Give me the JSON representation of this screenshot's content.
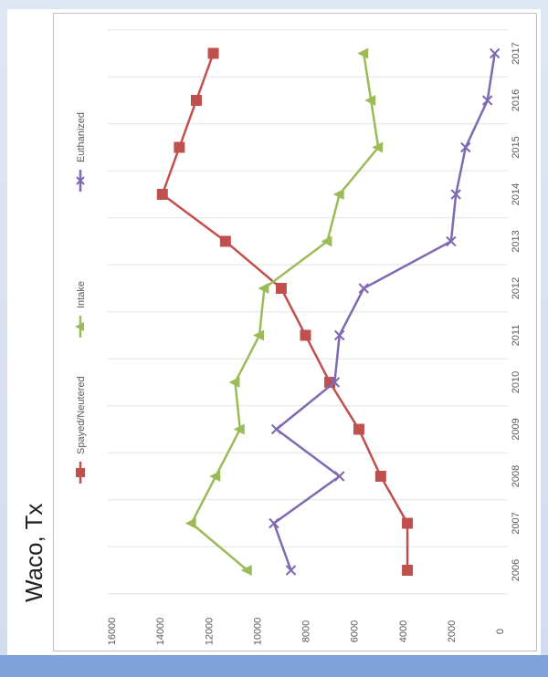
{
  "chart_data": {
    "type": "line",
    "title": "Waco, Tx",
    "xlabel": "",
    "ylabel": "",
    "x": [
      "2006",
      "2007",
      "2008",
      "2009",
      "2010",
      "2011",
      "2012",
      "2013",
      "2014",
      "2015",
      "2016",
      "2017"
    ],
    "yticks": [
      "0",
      "2000",
      "4000",
      "6000",
      "8000",
      "10000",
      "12000",
      "14000",
      "16000"
    ],
    "ylim": [
      0,
      16000
    ],
    "grid": true,
    "legend_position": "top",
    "orientation": "rotated-90-clockwise",
    "series": [
      {
        "name": "Spayed/Neutered",
        "color": "#c0504d",
        "marker": "square",
        "values": [
          3800,
          3800,
          4900,
          5800,
          7000,
          8000,
          9000,
          11300,
          13900,
          13200,
          12500,
          11800
        ]
      },
      {
        "name": "Intake",
        "color": "#9bbb59",
        "marker": "triangle",
        "values": [
          10400,
          12700,
          11700,
          10700,
          10900,
          9900,
          9700,
          7100,
          6600,
          5000,
          5300,
          5600
        ]
      },
      {
        "name": "Euthanized",
        "color": "#7f69b3",
        "marker": "x",
        "values": [
          8600,
          9300,
          6600,
          9200,
          6800,
          6600,
          5600,
          2000,
          1800,
          1400,
          500,
          200
        ]
      }
    ]
  }
}
